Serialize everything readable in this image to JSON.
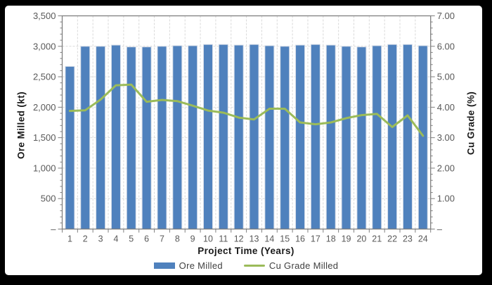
{
  "chart_data": {
    "type": "combo",
    "categories": [
      "1",
      "2",
      "3",
      "4",
      "5",
      "6",
      "7",
      "8",
      "9",
      "10",
      "11",
      "12",
      "13",
      "14",
      "15",
      "16",
      "17",
      "18",
      "19",
      "20",
      "21",
      "22",
      "23",
      "24"
    ],
    "series": [
      {
        "name": "Ore Milled",
        "type": "bar",
        "axis": "left",
        "color": "#4F81BD",
        "values": [
          2670,
          3000,
          3000,
          3020,
          2990,
          2990,
          3000,
          3010,
          3010,
          3030,
          3030,
          3020,
          3030,
          3010,
          3000,
          3020,
          3030,
          3020,
          3000,
          2990,
          3010,
          3030,
          3030,
          3010
        ]
      },
      {
        "name": "Cu Grade Milled",
        "type": "line",
        "axis": "right",
        "color": "#9BBB59",
        "values": [
          3.88,
          3.9,
          4.25,
          4.72,
          4.74,
          4.18,
          4.24,
          4.2,
          4.05,
          3.89,
          3.82,
          3.66,
          3.6,
          3.95,
          3.95,
          3.5,
          3.44,
          3.5,
          3.64,
          3.74,
          3.78,
          3.35,
          3.73,
          3.06
        ]
      }
    ],
    "left_axis": {
      "title": "Ore Milled (kt)",
      "min": 0,
      "max": 3500,
      "step": 500,
      "tick_labels": [
        "–",
        "500",
        "1,000",
        "1,500",
        "2,000",
        "2,500",
        "3,000",
        "3,500"
      ]
    },
    "right_axis": {
      "title": "Cu Grade (%)",
      "min": 0,
      "max": 7,
      "step": 1,
      "tick_labels": [
        "–",
        "1.00",
        "2.00",
        "3.00",
        "4.00",
        "5.00",
        "6.00",
        "7.00"
      ]
    },
    "x_axis": {
      "title": "Project Time (Years)"
    },
    "legend_position": "bottom",
    "grid": true,
    "colors": {
      "gridline": "#d9d9d9",
      "axis_line": "#7f7f7f",
      "tick_label": "#595959",
      "bar_edge": "#d6dde8",
      "background": "#ffffff",
      "frame": "#000000"
    }
  }
}
